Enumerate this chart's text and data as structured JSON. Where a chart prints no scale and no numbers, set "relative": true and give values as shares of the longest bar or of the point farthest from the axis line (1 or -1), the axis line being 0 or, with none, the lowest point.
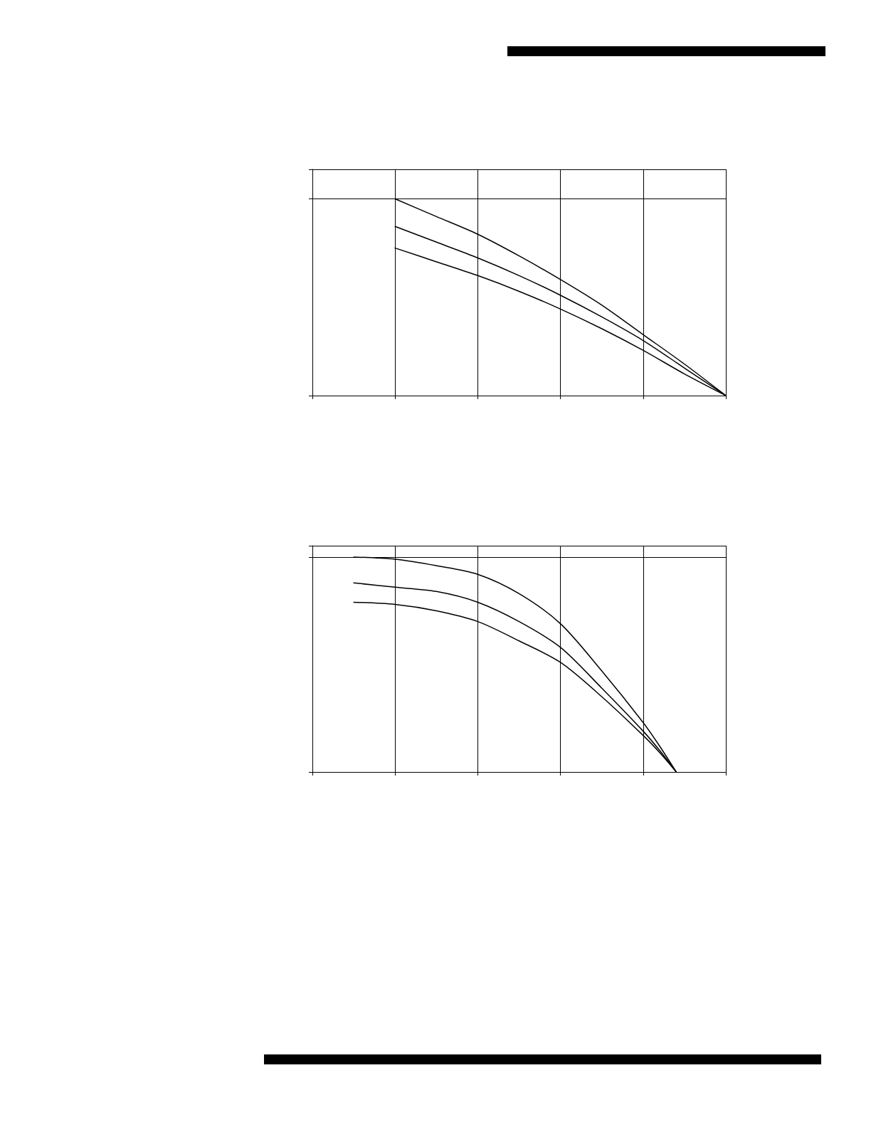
{
  "chart_data": [
    {
      "type": "line",
      "relative": true,
      "grid": true,
      "line_style": "solid",
      "marker": "none",
      "categories": [
        null,
        null,
        null,
        null,
        null,
        null,
        null,
        null,
        null,
        null,
        null
      ],
      "series": [
        {
          "color": "#000000",
          "values": [
            null,
            null,
            1,
            0.91,
            0.82,
            0.71,
            0.59,
            0.46,
            0.31,
            0.16,
            0
          ]
        },
        {
          "color": "#000000",
          "values": [
            null,
            null,
            0.86,
            0.78,
            0.7,
            0.61,
            0.51,
            0.4,
            0.28,
            0.14,
            0
          ]
        },
        {
          "color": "#000000",
          "values": [
            null,
            null,
            0.75,
            0.68,
            0.61,
            0.53,
            0.44,
            0.34,
            0.23,
            0.11,
            0
          ]
        }
      ]
    },
    {
      "type": "line",
      "relative": true,
      "grid": true,
      "line_style": "solid",
      "marker": "none",
      "categories": [
        null,
        null,
        null,
        null,
        null,
        null,
        null,
        null,
        null,
        null,
        null,
        null,
        null,
        null,
        null,
        null,
        null,
        null,
        null,
        null,
        null,
        null,
        null,
        null,
        null,
        null,
        null,
        null,
        null,
        null,
        null,
        null,
        null,
        null,
        null,
        null,
        null,
        null,
        null,
        null,
        null,
        null,
        null,
        null,
        null,
        null,
        null,
        null,
        null,
        null,
        null
      ],
      "series": [
        {
          "color": "#000000",
          "values": [
            null,
            null,
            null,
            null,
            null,
            1,
            null,
            null,
            null,
            null,
            0.99,
            null,
            null,
            null,
            null,
            0.96,
            null,
            null,
            null,
            null,
            0.92,
            null,
            null,
            null,
            null,
            0.83,
            null,
            null,
            null,
            null,
            0.69,
            null,
            null,
            null,
            null,
            0.47,
            null,
            null,
            null,
            null,
            0.23,
            null,
            0.12,
            null,
            0,
            null,
            null,
            null,
            null,
            null,
            null
          ]
        },
        {
          "color": "#000000",
          "values": [
            null,
            null,
            null,
            null,
            null,
            0.88,
            null,
            null,
            null,
            null,
            0.86,
            null,
            null,
            null,
            null,
            0.84,
            null,
            null,
            null,
            null,
            0.79,
            null,
            null,
            null,
            null,
            0.7,
            null,
            null,
            null,
            null,
            0.58,
            null,
            null,
            null,
            null,
            0.39,
            null,
            null,
            null,
            null,
            0.19,
            null,
            0.1,
            null,
            0,
            null,
            null,
            null,
            null,
            null,
            null
          ]
        },
        {
          "color": "#000000",
          "values": [
            null,
            null,
            null,
            null,
            null,
            0.79,
            null,
            null,
            null,
            null,
            0.78,
            null,
            null,
            null,
            null,
            0.75,
            null,
            null,
            null,
            null,
            0.7,
            null,
            null,
            null,
            null,
            0.61,
            null,
            null,
            null,
            null,
            0.51,
            null,
            null,
            null,
            null,
            0.35,
            null,
            null,
            null,
            null,
            0.17,
            null,
            0.09,
            null,
            0,
            null,
            null,
            null,
            null,
            null,
            null
          ]
        }
      ]
    }
  ]
}
